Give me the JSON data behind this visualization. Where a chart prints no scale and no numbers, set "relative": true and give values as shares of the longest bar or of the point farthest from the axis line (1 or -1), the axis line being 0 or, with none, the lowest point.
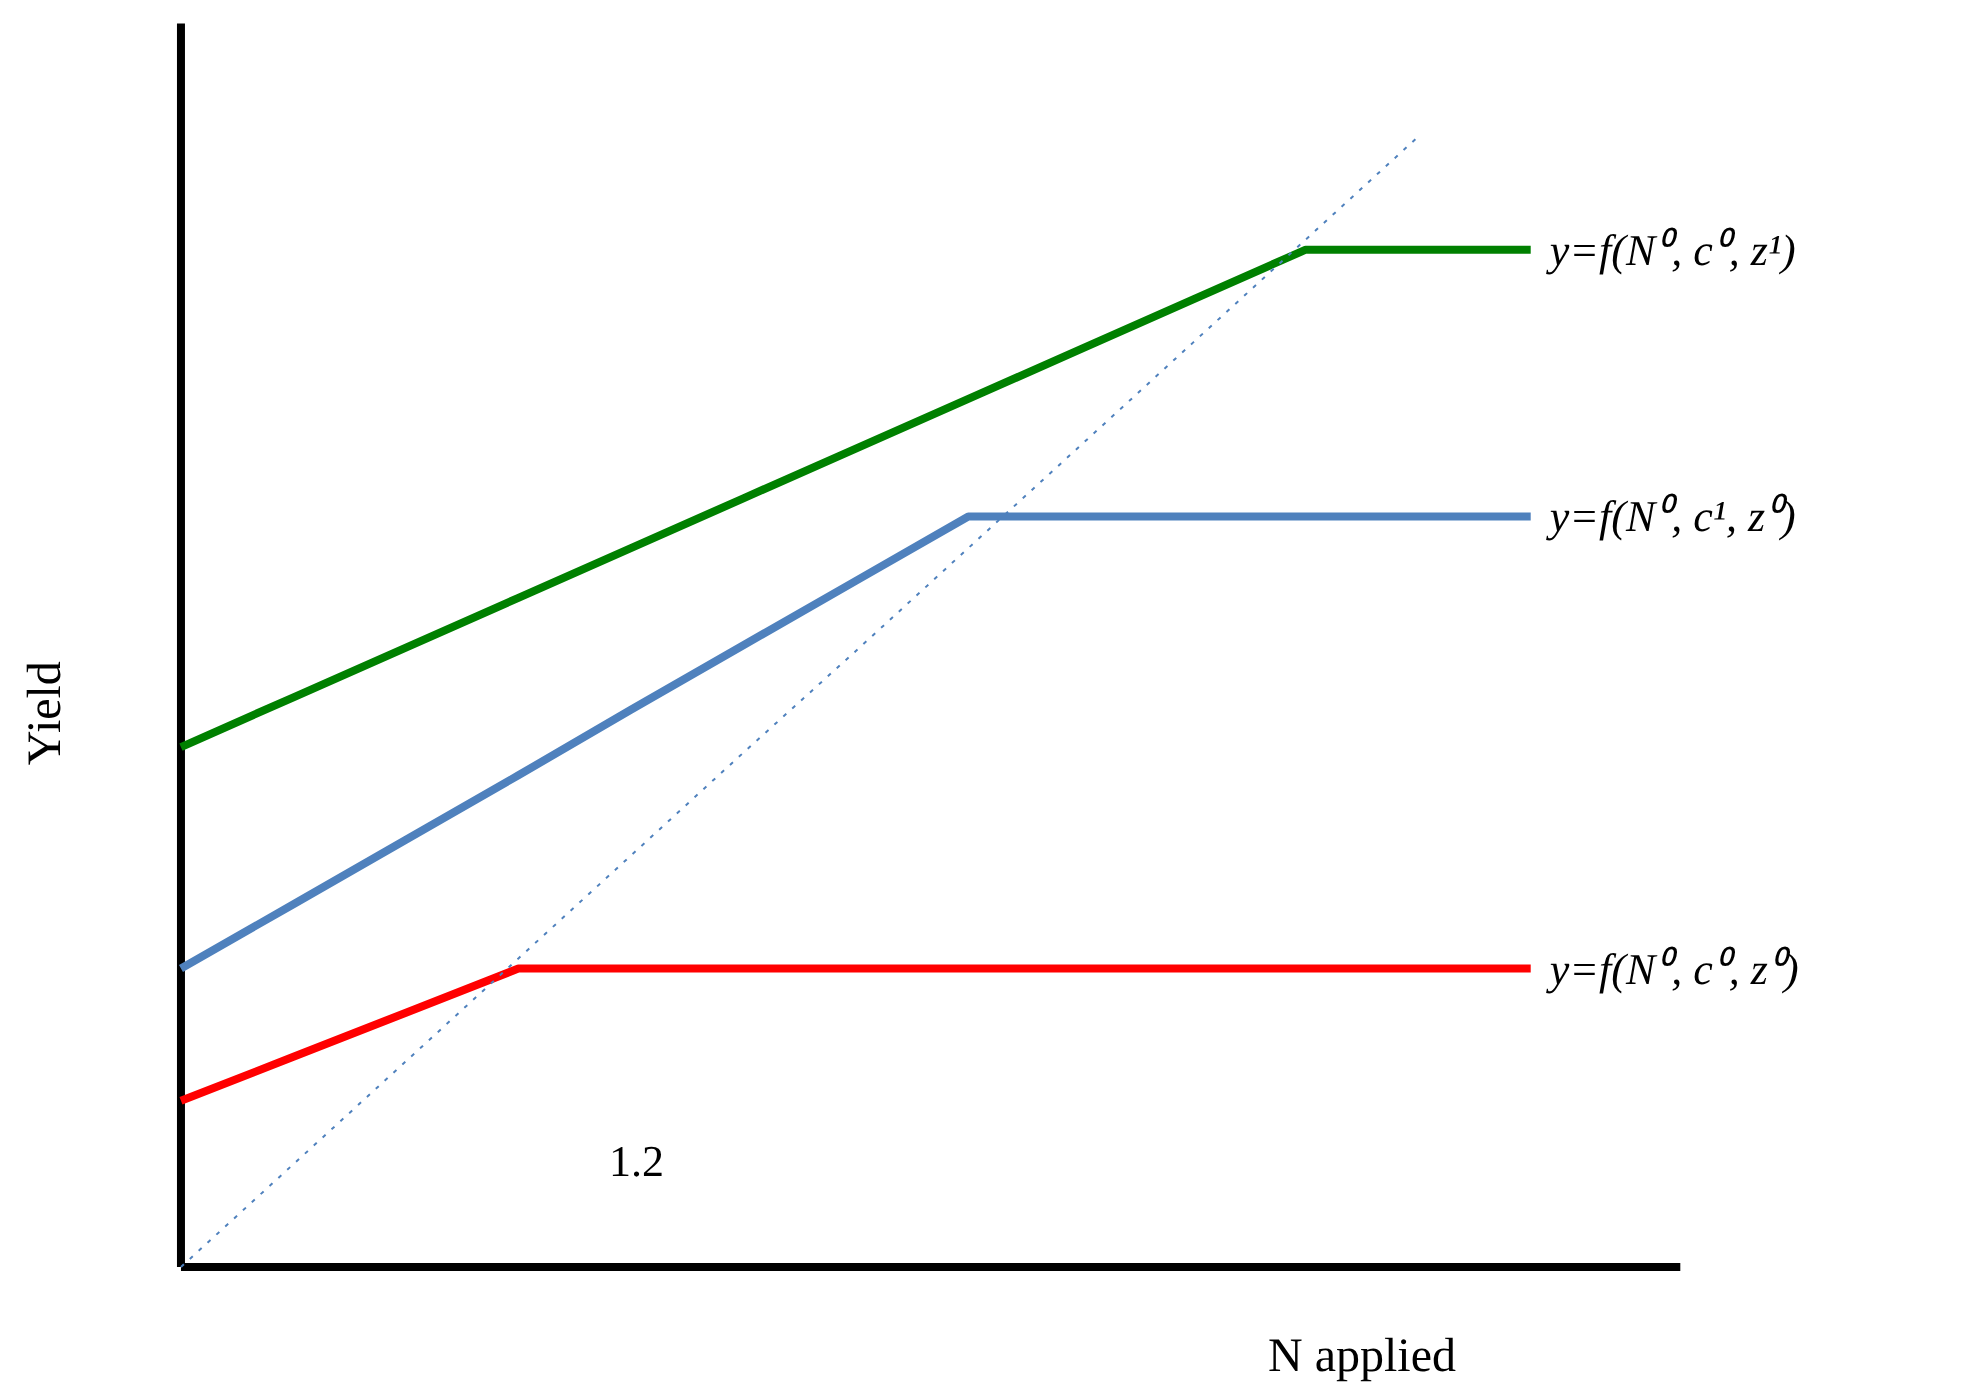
{
  "chart_data": {
    "type": "line",
    "relative": true,
    "xlabel": "N applied",
    "ylabel": "Yield",
    "tick_labels": false,
    "grid": false,
    "marker": "none",
    "categories": [
      null,
      null,
      null,
      null,
      null,
      null,
      null,
      null,
      null,
      null,
      null,
      null,
      null
    ],
    "series": [
      {
        "name": "y=f(N⁰, c⁰, z¹)",
        "color": "#008000",
        "values": [
          0.46,
          0.504,
          0.548,
          0.592,
          0.636,
          0.68,
          0.724,
          0.768,
          0.812,
          0.856,
          0.9,
          0.9,
          0.9
        ]
      },
      {
        "name": "y=f(N⁰, c¹, z⁰)",
        "color": "#4f81bd",
        "values": [
          0.264,
          0.321,
          0.378,
          0.435,
          0.493,
          0.55,
          0.607,
          0.664,
          0.664,
          0.664,
          0.664,
          0.664,
          0.664
        ]
      },
      {
        "name": "y=f(N⁰, c⁰, z⁰)",
        "color": "#ff0000",
        "values": [
          0.147,
          0.186,
          0.225,
          0.264,
          0.264,
          0.264,
          0.264,
          0.264,
          0.264,
          0.264,
          0.264,
          0.264,
          0.264
        ]
      },
      {
        "color": "#4f81bd",
        "line_style": "dotted",
        "values": [
          0,
          0.091,
          0.182,
          0.273,
          0.364,
          0.455,
          0.545,
          0.636,
          0.727,
          0.818,
          0.909,
          1,
          null
        ]
      }
    ],
    "annotations": [
      "1.2"
    ]
  }
}
